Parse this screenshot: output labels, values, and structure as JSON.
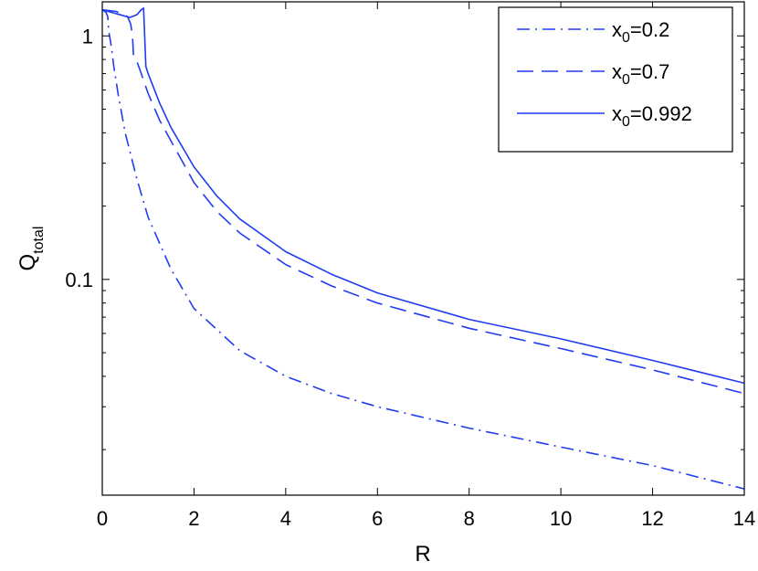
{
  "chart_data": {
    "type": "line",
    "title": "",
    "xlabel": "R",
    "ylabel": "Q",
    "ylabel_subscript": "total",
    "xlim": [
      0,
      14
    ],
    "ylim": [
      0.013,
      1.38
    ],
    "yscale": "log",
    "grid": false,
    "legend_position": "top-right",
    "line_color": "#1f3cf0",
    "x_ticks": [
      0,
      2,
      4,
      6,
      8,
      10,
      12,
      14
    ],
    "x_tick_labels": [
      "0",
      "2",
      "4",
      "6",
      "8",
      "10",
      "12",
      "14"
    ],
    "y_tick_labels": [
      {
        "value": 0.1,
        "label": "0.1"
      },
      {
        "value": 1,
        "label": "1"
      }
    ],
    "y_minor_ticks": [
      0.02,
      0.03,
      0.04,
      0.05,
      0.06,
      0.07,
      0.08,
      0.09,
      0.2,
      0.3,
      0.4,
      0.5,
      0.6,
      0.7,
      0.8,
      0.9
    ],
    "series": [
      {
        "name": "x_0=0.2",
        "legend_base": "x",
        "legend_sub": "0",
        "legend_value": "=0.2",
        "style": "dashdot",
        "x": [
          0,
          0.08,
          0.12,
          0.14,
          0.2,
          0.25,
          0.35,
          0.5,
          0.75,
          1,
          1.5,
          2,
          3,
          4,
          5,
          6,
          8,
          10,
          12,
          14
        ],
        "y": [
          1.28,
          1.25,
          1.2,
          1.05,
          0.9,
          0.75,
          0.57,
          0.4,
          0.26,
          0.18,
          0.11,
          0.076,
          0.051,
          0.04,
          0.034,
          0.03,
          0.0245,
          0.0205,
          0.0172,
          0.0138
        ]
      },
      {
        "name": "x_0=0.7",
        "legend_base": "x",
        "legend_sub": "0",
        "legend_value": "=0.7",
        "style": "dashed",
        "x": [
          0,
          0.3,
          0.55,
          0.62,
          0.66,
          0.68,
          0.75,
          0.85,
          1,
          1.25,
          1.5,
          2,
          2.5,
          3,
          4,
          5,
          6,
          8,
          10,
          12,
          14
        ],
        "y": [
          1.28,
          1.26,
          1.2,
          1.12,
          1.0,
          0.84,
          0.79,
          0.7,
          0.58,
          0.45,
          0.37,
          0.25,
          0.19,
          0.155,
          0.115,
          0.094,
          0.08,
          0.063,
          0.052,
          0.0425,
          0.034
        ]
      },
      {
        "name": "x_0=0.992",
        "legend_base": "x",
        "legend_sub": "0",
        "legend_value": "=0.992",
        "style": "solid",
        "x": [
          0,
          0.4,
          0.6,
          0.75,
          0.85,
          0.9,
          0.92,
          0.95,
          1,
          1.25,
          1.5,
          2,
          2.5,
          3,
          4,
          5,
          6,
          8,
          10,
          12,
          14
        ],
        "y": [
          1.28,
          1.22,
          1.19,
          1.22,
          1.28,
          1.3,
          1.05,
          0.75,
          0.7,
          0.53,
          0.42,
          0.29,
          0.22,
          0.177,
          0.13,
          0.105,
          0.088,
          0.0685,
          0.057,
          0.0465,
          0.0375
        ]
      }
    ]
  }
}
